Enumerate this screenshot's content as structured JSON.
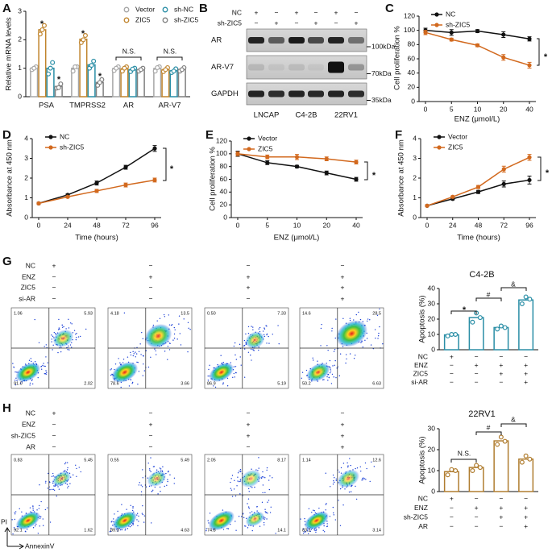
{
  "panel_letters": [
    "A",
    "B",
    "C",
    "D",
    "E",
    "F",
    "G",
    "H"
  ],
  "chart_data": [
    {
      "type": "bar",
      "ylabel": "Relative mRNA levels",
      "categories": [
        "PSA",
        "TMPRSS2",
        "AR",
        "AR-V7"
      ],
      "series": [
        {
          "name": "Vector",
          "color": "#a6a6a6",
          "values": [
            1.0,
            1.0,
            0.99,
            0.99
          ],
          "points": [
            [
              0.95,
              1.05,
              1.0
            ],
            [
              0.9,
              1.05,
              1.05
            ],
            [
              0.92,
              1.05,
              1.0
            ],
            [
              0.9,
              1.05,
              1.02
            ]
          ]
        },
        {
          "name": "ZIC5",
          "color": "#c0842c",
          "values": [
            2.35,
            2.02,
            0.98,
            0.95
          ],
          "points": [
            [
              2.2,
              2.5,
              2.35
            ],
            [
              1.9,
              2.15,
              2.0
            ],
            [
              0.9,
              1.05,
              1.0
            ],
            [
              0.88,
              1.02,
              0.95
            ]
          ]
        },
        {
          "name": "sh-NC",
          "color": "#2a8ea6",
          "values": [
            1.0,
            1.12,
            0.95,
            0.91
          ],
          "points": [
            [
              0.8,
              1.2,
              1.0
            ],
            [
              1.0,
              1.25,
              1.1
            ],
            [
              0.88,
              1.0,
              0.97
            ],
            [
              0.85,
              0.98,
              0.9
            ]
          ]
        },
        {
          "name": "sh-ZIC5",
          "color": "#7f7f7f",
          "values": [
            0.36,
            0.5,
            0.95,
            0.96
          ],
          "points": [
            [
              0.3,
              0.45,
              0.32
            ],
            [
              0.4,
              0.6,
              0.5
            ],
            [
              0.9,
              1.0,
              0.95
            ],
            [
              0.9,
              1.02,
              0.95
            ]
          ]
        }
      ],
      "ylim": [
        0,
        3
      ],
      "yticks": [
        0,
        1,
        2,
        3
      ],
      "grid": false,
      "legend": "upper right",
      "annotations": [
        "*",
        "*",
        "*",
        "*",
        "N.S.",
        "N.S."
      ]
    },
    {
      "type": "line",
      "ylabel": "Cell proliferation %",
      "xlabel": "ENZ (μmol/L)",
      "categories": [
        "0",
        "5",
        "10",
        "20",
        "40"
      ],
      "series": [
        {
          "name": "NC",
          "color": "#111111",
          "values": [
            100,
            97,
            99,
            94,
            88
          ],
          "errors": [
            3,
            4,
            2,
            4,
            3
          ]
        },
        {
          "name": "sh-ZIC5",
          "color": "#d2691e",
          "values": [
            97,
            87,
            79,
            62,
            51
          ],
          "errors": [
            3,
            2,
            2,
            4,
            4
          ]
        }
      ],
      "ylim": [
        0,
        120
      ],
      "yticks": [
        0,
        20,
        40,
        60,
        80,
        100,
        120
      ],
      "grid": false,
      "legend": "upper left",
      "annotations": [
        "*"
      ]
    },
    {
      "type": "line",
      "ylabel": "Absorbance at 450 nm",
      "xlabel": "Time (hours)",
      "categories": [
        "0",
        "24",
        "48",
        "72",
        "96"
      ],
      "series": [
        {
          "name": "NC",
          "color": "#111111",
          "values": [
            0.72,
            1.15,
            1.75,
            2.55,
            3.5
          ],
          "errors": [
            0.05,
            0.05,
            0.1,
            0.1,
            0.15
          ]
        },
        {
          "name": "sh-ZIC5",
          "color": "#d2691e",
          "values": [
            0.72,
            1.05,
            1.35,
            1.65,
            1.9
          ],
          "errors": [
            0.05,
            0.05,
            0.08,
            0.1,
            0.1
          ]
        }
      ],
      "ylim": [
        0,
        4
      ],
      "yticks": [
        0,
        1,
        2,
        3,
        4
      ],
      "grid": false,
      "legend": "upper left",
      "annotations": [
        "*"
      ]
    },
    {
      "type": "line",
      "ylabel": "Cell proliferation %",
      "xlabel": "ENZ (μmol/L)",
      "categories": [
        "0",
        "5",
        "10",
        "20",
        "40"
      ],
      "series": [
        {
          "name": "Vector",
          "color": "#111111",
          "values": [
            100,
            86,
            80,
            70,
            60
          ],
          "errors": [
            4,
            3,
            2,
            3,
            3
          ]
        },
        {
          "name": "ZIC5",
          "color": "#d2691e",
          "values": [
            100,
            95,
            95,
            92,
            87
          ],
          "errors": [
            3,
            3,
            4,
            3,
            3
          ]
        }
      ],
      "ylim": [
        0,
        120
      ],
      "yticks": [
        0,
        20,
        40,
        60,
        80,
        100,
        120
      ],
      "grid": false,
      "legend": "upper left",
      "annotations": [
        "*"
      ]
    },
    {
      "type": "line",
      "ylabel": "Absorbance at 450 nm",
      "xlabel": "Time (hours)",
      "categories": [
        "0",
        "24",
        "48",
        "72",
        "96"
      ],
      "series": [
        {
          "name": "Vector",
          "color": "#111111",
          "values": [
            0.6,
            0.95,
            1.3,
            1.7,
            1.9
          ],
          "errors": [
            0.05,
            0.05,
            0.08,
            0.15,
            0.2
          ]
        },
        {
          "name": "ZIC5",
          "color": "#d2691e",
          "values": [
            0.6,
            1.05,
            1.55,
            2.45,
            3.05
          ],
          "errors": [
            0.05,
            0.05,
            0.08,
            0.15,
            0.15
          ]
        }
      ],
      "ylim": [
        0,
        4
      ],
      "yticks": [
        0,
        1,
        2,
        3,
        4
      ],
      "grid": false,
      "legend": "upper left",
      "annotations": [
        "*"
      ]
    },
    {
      "type": "bar",
      "title": "C4-2B",
      "ylabel": "Apoptosis (%)",
      "conditions": [
        {
          "label": "NC",
          "signs": [
            "+",
            "−",
            "−",
            "−"
          ]
        },
        {
          "label": "ENZ",
          "signs": [
            "−",
            "+",
            "+",
            "+"
          ]
        },
        {
          "label": "ZIC5",
          "signs": [
            "−",
            "−",
            "+",
            "+"
          ]
        },
        {
          "label": "si-AR",
          "signs": [
            "−",
            "−",
            "−",
            "+"
          ]
        }
      ],
      "series": [
        {
          "color": "#2a8ea6",
          "values": [
            9.7,
            21,
            14.5,
            32.5
          ],
          "points": [
            [
              9,
              10,
              10
            ],
            [
              18,
              21,
              24
            ],
            [
              13.5,
              14.5,
              15.5
            ],
            [
              30,
              33,
              34.5
            ]
          ]
        }
      ],
      "ylim": [
        0,
        40
      ],
      "yticks": [
        0,
        10,
        20,
        30,
        40
      ],
      "grid": false,
      "annotations": [
        "*",
        "#",
        "&"
      ]
    },
    {
      "type": "bar",
      "title": "22RV1",
      "ylabel": "Apoptosis (%)",
      "conditions": [
        {
          "label": "NC",
          "signs": [
            "+",
            "−",
            "−",
            "−"
          ]
        },
        {
          "label": "ENZ",
          "signs": [
            "−",
            "+",
            "+",
            "+"
          ]
        },
        {
          "label": "sh-ZIC5",
          "signs": [
            "−",
            "−",
            "+",
            "+"
          ]
        },
        {
          "label": "AR",
          "signs": [
            "−",
            "−",
            "−",
            "+"
          ]
        }
      ],
      "series": [
        {
          "color": "#b07d30",
          "values": [
            9.5,
            11.5,
            24.2,
            15.5
          ],
          "points": [
            [
              8,
              10,
              10.5
            ],
            [
              10,
              11.5,
              12.5
            ],
            [
              22.5,
              24,
              26
            ],
            [
              14,
              15.5,
              17
            ]
          ]
        }
      ],
      "ylim": [
        0,
        30
      ],
      "yticks": [
        0,
        10,
        20,
        30
      ],
      "grid": false,
      "annotations": [
        "N.S.",
        "#",
        "&"
      ]
    }
  ],
  "blot": {
    "header": [
      {
        "label": "NC",
        "signs": [
          "+",
          "−",
          "+",
          "−",
          "+",
          "−"
        ]
      },
      {
        "label": "sh-ZIC5",
        "signs": [
          "−",
          "+",
          "−",
          "+",
          "−",
          "+"
        ]
      }
    ],
    "rows": [
      {
        "label": "AR",
        "size": "100kDa"
      },
      {
        "label": "AR-V7",
        "size": "70kDa"
      },
      {
        "label": "GAPDH",
        "size": "35kDa"
      }
    ],
    "cell_lines": [
      "LNCAP",
      "C4-2B",
      "22RV1"
    ]
  },
  "flow_g": {
    "conditions": [
      {
        "label": "NC",
        "signs": [
          "+",
          "−",
          "−",
          "−"
        ]
      },
      {
        "label": "ENZ",
        "signs": [
          "−",
          "+",
          "+",
          "+"
        ]
      },
      {
        "label": "ZIC5",
        "signs": [
          "−",
          "−",
          "+",
          "+"
        ]
      },
      {
        "label": "si-AR",
        "signs": [
          "−",
          "−",
          "−",
          "+"
        ]
      }
    ],
    "quadrants": [
      [
        "1.06",
        "5.93",
        "91.0",
        "2.02"
      ],
      [
        "4.18",
        "13.5",
        "78.6",
        "3.66"
      ],
      [
        "0.50",
        "7.33",
        "86.9",
        "5.19"
      ],
      [
        "14.6",
        "28.5",
        "50.2",
        "6.63"
      ]
    ]
  },
  "flow_h": {
    "conditions": [
      {
        "label": "NC",
        "signs": [
          "+",
          "−",
          "−",
          "−"
        ]
      },
      {
        "label": "ENZ",
        "signs": [
          "−",
          "+",
          "+",
          "+"
        ]
      },
      {
        "label": "sh-ZIC5",
        "signs": [
          "−",
          "−",
          "+",
          "+"
        ]
      },
      {
        "label": "AR",
        "signs": [
          "−",
          "−",
          "−",
          "+"
        ]
      }
    ],
    "quadrants": [
      [
        "0.83",
        "5.45",
        "92.1",
        "1.62"
      ],
      [
        "0.55",
        "5.49",
        "89.3",
        "4.63"
      ],
      [
        "2.05",
        "8.17",
        "74.8",
        "14.1"
      ],
      [
        "1.14",
        "12.6",
        "83.1",
        "3.14"
      ]
    ],
    "y_axis": "PI",
    "x_axis": "AnnexinV"
  }
}
